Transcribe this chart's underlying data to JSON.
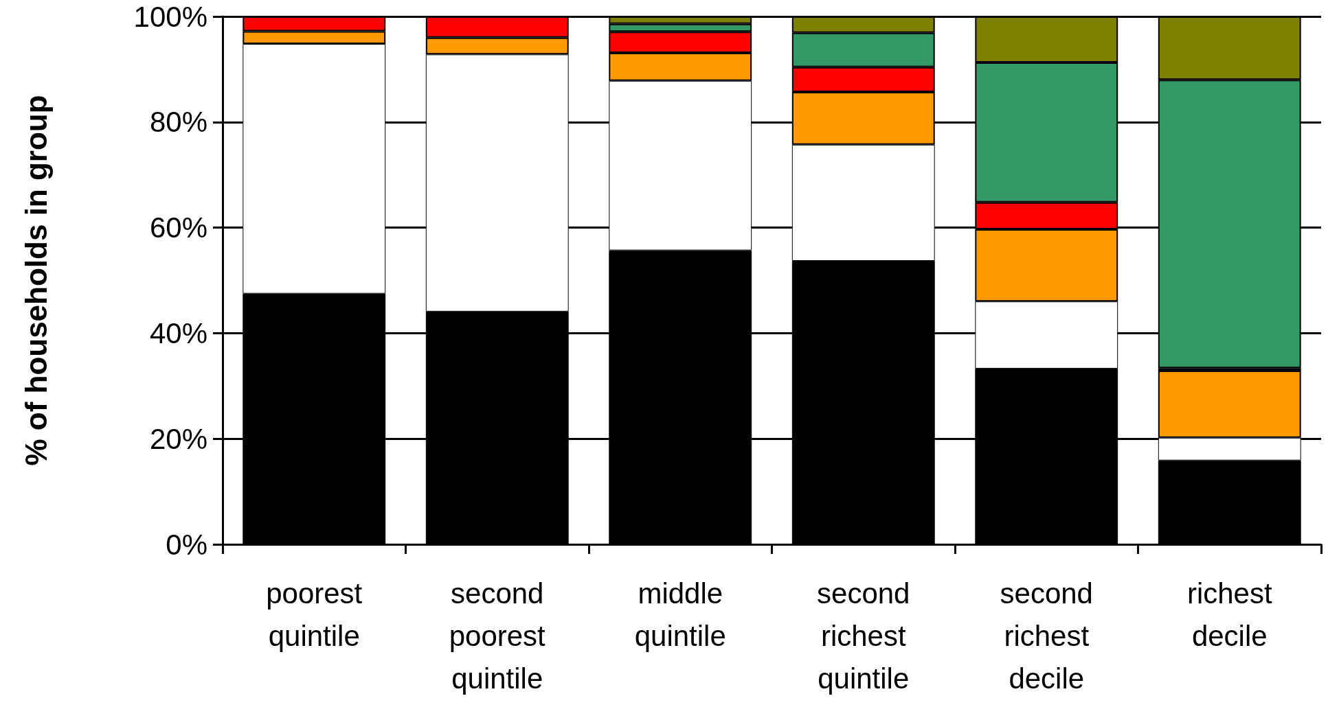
{
  "chart_data": {
    "type": "bar",
    "stacked": true,
    "ylabel": "% of households in group",
    "categories": [
      "poorest quintile",
      "second poorest quintile",
      "middle quintile",
      "second richest quintile",
      "second richest decile",
      "richest decile"
    ],
    "series": [
      {
        "color": "#000000",
        "values": [
          47.5,
          44.1,
          55.7,
          53.7,
          33.3,
          15.9
        ]
      },
      {
        "color": "#ffffff",
        "values": [
          47.3,
          48.7,
          32.1,
          22,
          12.7,
          4.3
        ]
      },
      {
        "color": "#ff9900",
        "values": [
          2.4,
          3.2,
          5.3,
          10,
          13.7,
          12.7
        ]
      },
      {
        "color": "#ff0000",
        "values": [
          2.8,
          4,
          4,
          4.7,
          5.1,
          0.5
        ]
      },
      {
        "color": "#339966",
        "values": [
          null,
          null,
          1.5,
          6.5,
          26.5,
          54.6
        ]
      },
      {
        "color": "#808000",
        "values": [
          null,
          null,
          1.4,
          3.1,
          8.7,
          12
        ]
      }
    ],
    "ylim": [
      0,
      100
    ],
    "yticks": [
      {
        "value": 0,
        "label": "0%"
      },
      {
        "value": 20,
        "label": "20%"
      },
      {
        "value": 40,
        "label": "40%"
      },
      {
        "value": 60,
        "label": "60%"
      },
      {
        "value": 80,
        "label": "80%"
      },
      {
        "value": 100,
        "label": "100%"
      }
    ],
    "grid": "y"
  }
}
